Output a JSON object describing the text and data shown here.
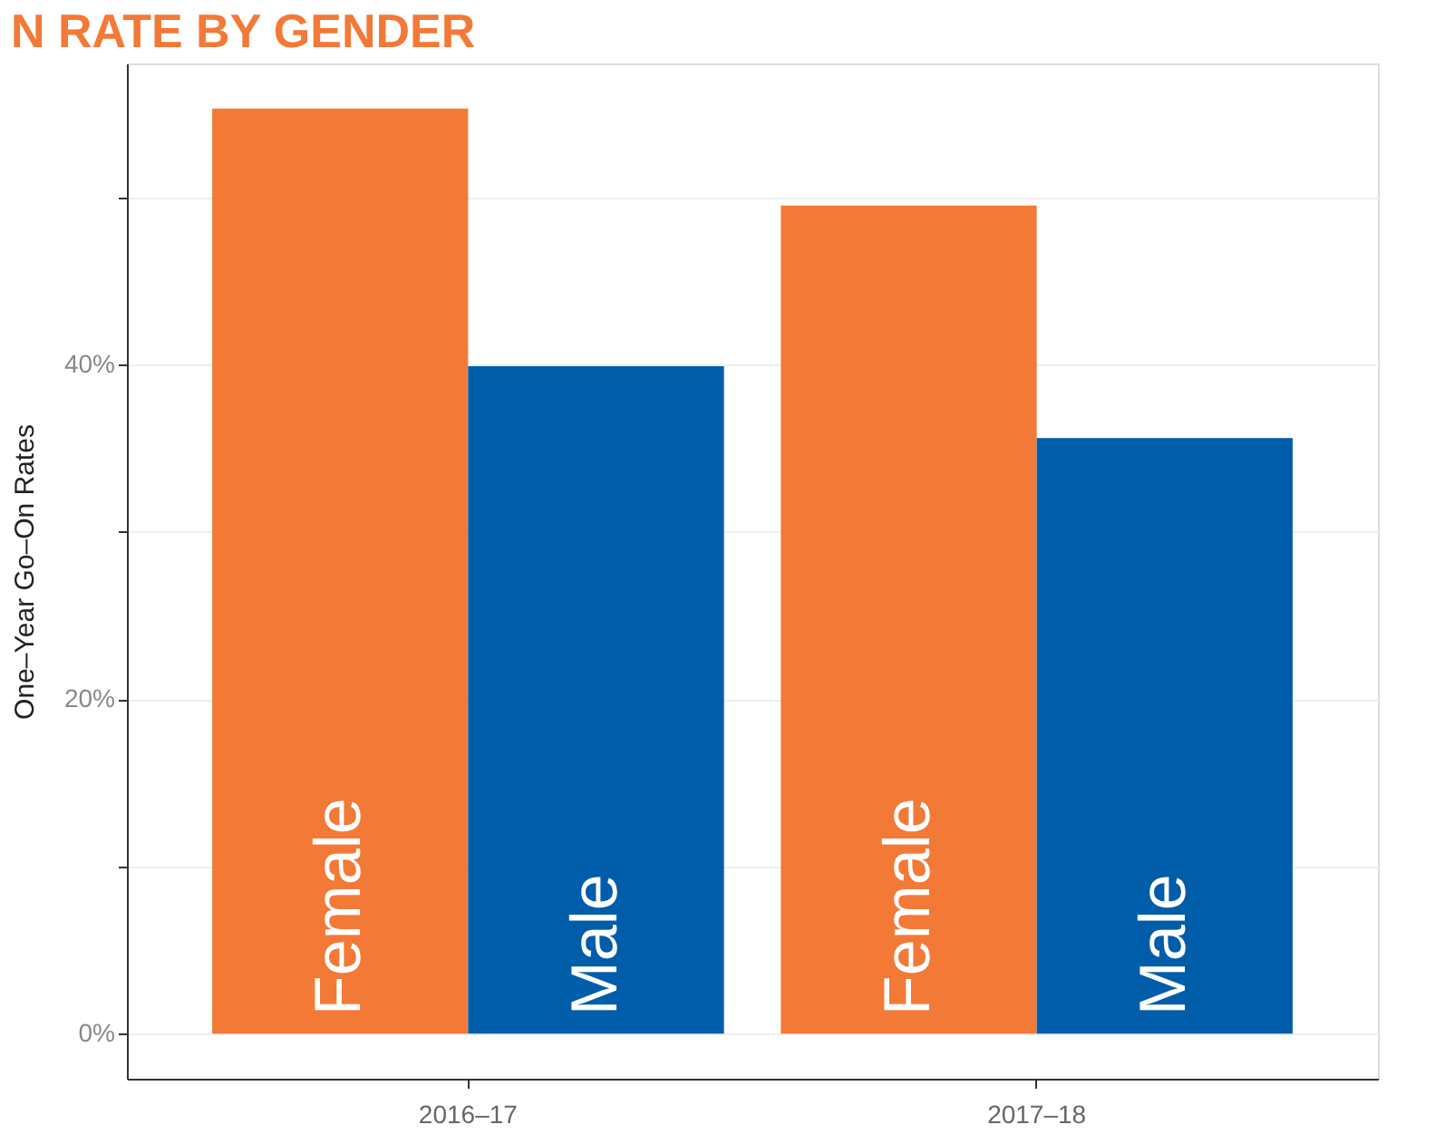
{
  "chart_data": {
    "type": "bar",
    "title": "N RATE BY GENDER",
    "ylabel": "One–Year Go–On Rates",
    "categories": [
      "2016–17",
      "2017–18"
    ],
    "series": [
      {
        "name": "Female",
        "color": "#f37937",
        "values": [
          55.3,
          49.5
        ]
      },
      {
        "name": "Male",
        "color": "#005daa",
        "values": [
          39.9,
          35.6
        ]
      }
    ],
    "ylim": [
      -2.7,
      58
    ],
    "yticks": [
      {
        "value": 0,
        "label": "0%"
      },
      {
        "value": 10,
        "label": null
      },
      {
        "value": 20,
        "label": "20%"
      },
      {
        "value": 30,
        "label": null
      },
      {
        "value": 40,
        "label": "40%"
      },
      {
        "value": 50,
        "label": null
      }
    ],
    "grid": "y",
    "legend": false
  }
}
